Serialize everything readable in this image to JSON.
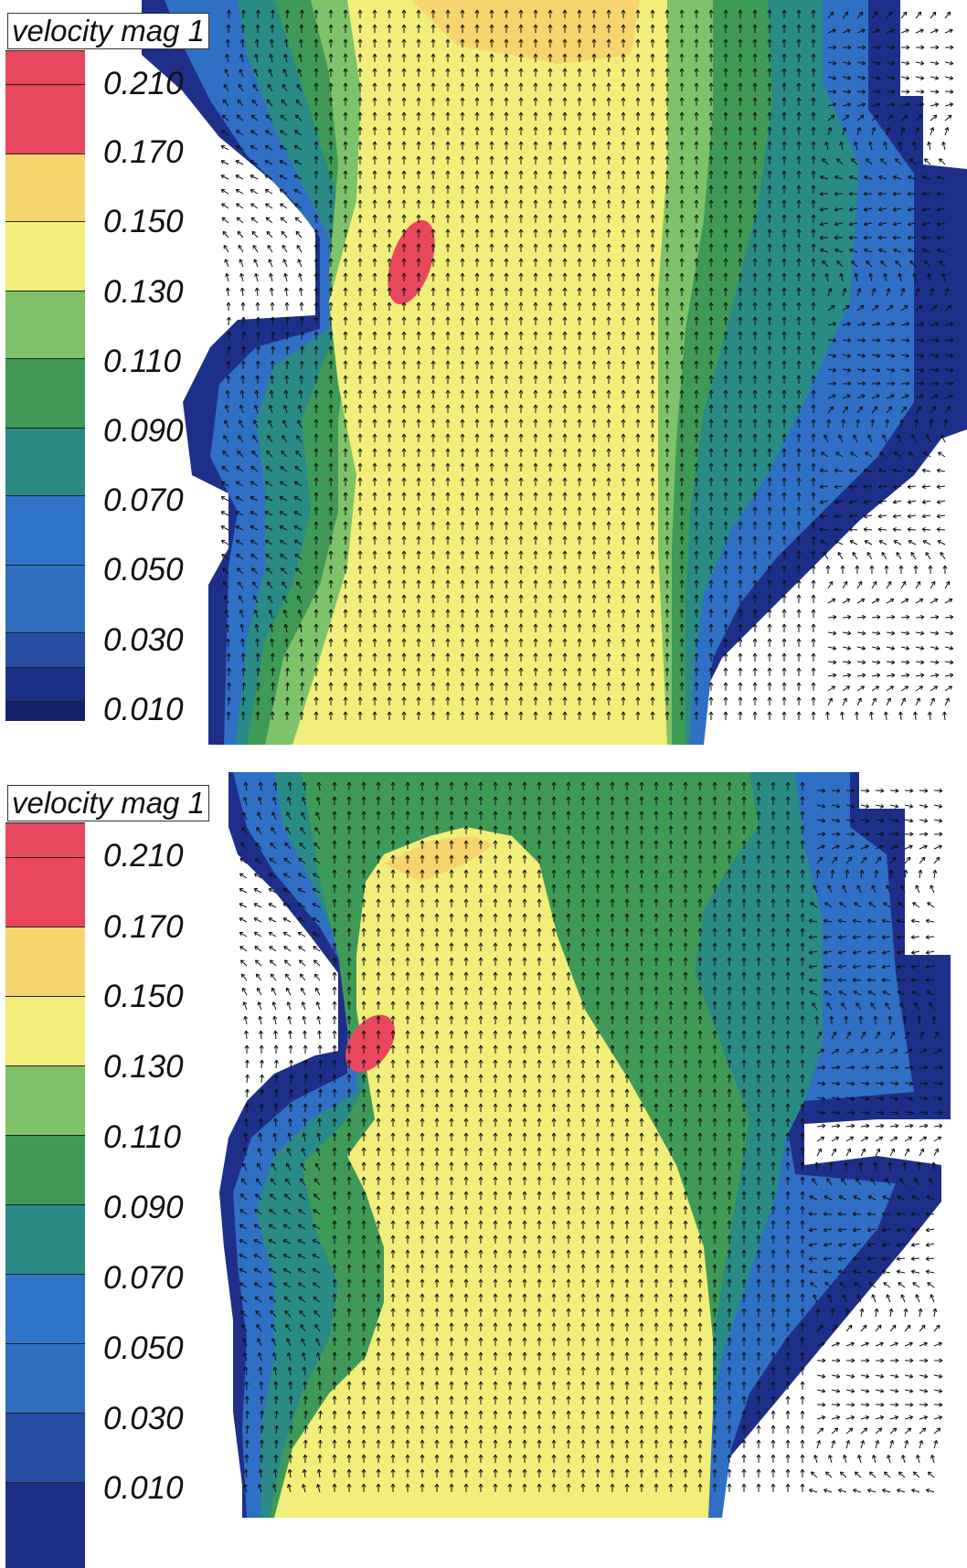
{
  "chart_data": [
    {
      "type": "heatmap",
      "title": "velocity mag 1",
      "colorbar": {
        "tick_labels": [
          "0.210",
          "0.170",
          "0.150",
          "0.130",
          "0.110",
          "0.090",
          "0.070",
          "0.050",
          "0.030",
          "0.010"
        ],
        "band_colors": [
          "#e8475e",
          "#f7d56e",
          "#f1ee7a",
          "#7ec36a",
          "#3f9a58",
          "#2a8a85",
          "#2f74c8",
          "#2e6fc0",
          "#284ea4",
          "#1c2f86",
          "#15206a"
        ],
        "colormap_order": "dark blue (low) to red (high)"
      },
      "vector_arrows": "velocity direction arrows overlaid on grid, predominantly pointing upward in main channel, recirculation on right side",
      "hotspot": "small red region (>0.170) left of channel center, upper third"
    },
    {
      "type": "heatmap",
      "title": "velocity mag 1",
      "colorbar": {
        "tick_labels": [
          "0.210",
          "0.170",
          "0.150",
          "0.130",
          "0.110",
          "0.090",
          "0.070",
          "0.050",
          "0.030",
          "0.010"
        ],
        "band_colors": [
          "#e8475e",
          "#f7d56e",
          "#f1ee7a",
          "#7ec36a",
          "#3f9a58",
          "#2a8a85",
          "#2f74c8",
          "#2e6fc0",
          "#284ea4",
          "#1c2f86",
          "#15206a"
        ],
        "colormap_order": "dark blue (low) to red (high)"
      },
      "vector_arrows": "velocity direction arrows overlaid on grid, predominantly pointing upward; yellow core narrows toward top",
      "hotspot": "small red region (>0.170) near left notch, middle of field"
    }
  ]
}
